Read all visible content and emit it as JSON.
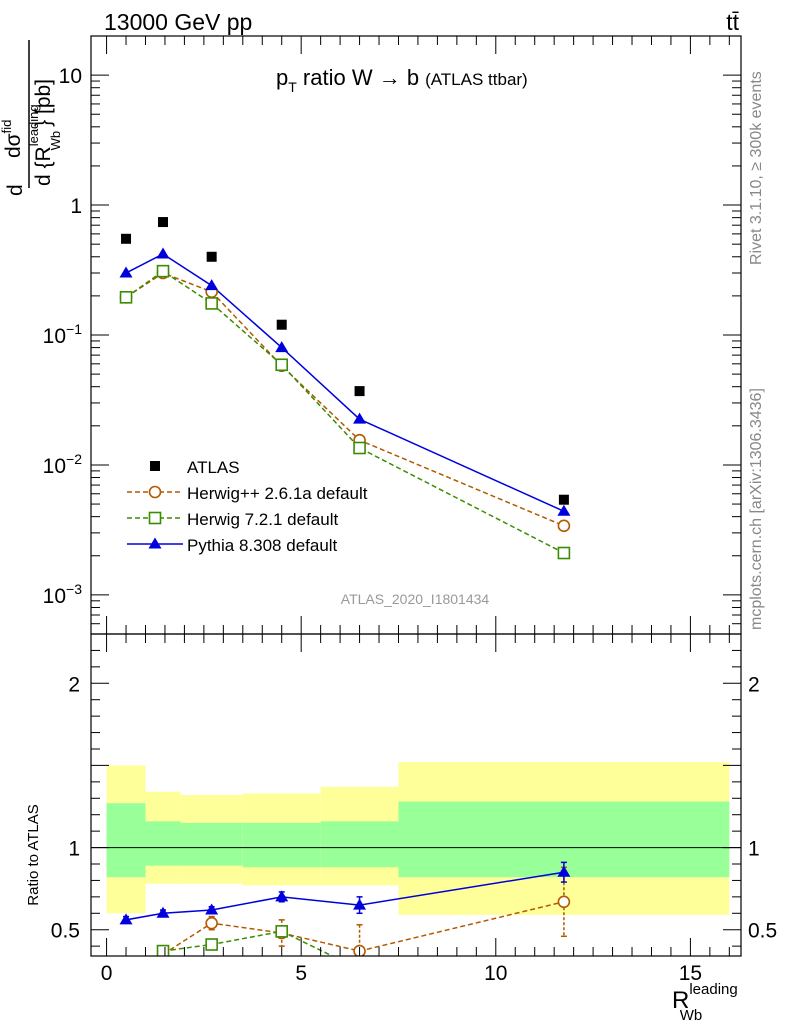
{
  "header": {
    "left": "13000 GeV pp",
    "right": "tt̄"
  },
  "side_labels": {
    "top": "Rivet 3.1.10, ≥ 300k events",
    "bottom": "mcplots.cern.ch [arXiv:1306.3436]"
  },
  "watermark": "ATLAS_2020_I1801434",
  "colors": {
    "atlas": "#000000",
    "herwigpp": "#b35900",
    "herwig7": "#3a8c00",
    "pythia": "#0000dd",
    "band_inner": "#99ff99",
    "band_outer": "#ffff99"
  },
  "chart_data": [
    {
      "type": "line",
      "panel": "main",
      "title_main": "p",
      "title_sub": "T",
      "title_rest": " ratio W → b",
      "title_small": "(ATLAS ttbar)",
      "ylabel": "d σ^fid / d {R_Wb^leading} [pb]",
      "ylabel_d": "d",
      "ylabel_num": "dσ",
      "ylabel_num_sup": "fid",
      "ylabel_den": "d {R",
      "ylabel_den_sup": "leading",
      "ylabel_den_sub": "Wb",
      "ylabel_den_end": "} [pb]",
      "yscale": "log",
      "ylim": [
        0.0005,
        20
      ],
      "xlim": [
        -0.4,
        16.3
      ],
      "yticks": [
        {
          "v": 10,
          "base": "10",
          "exp": ""
        },
        {
          "v": 1,
          "base": "1",
          "exp": ""
        },
        {
          "v": 0.1,
          "base": "10",
          "exp": "−1"
        },
        {
          "v": 0.01,
          "base": "10",
          "exp": "−2"
        },
        {
          "v": 0.001,
          "base": "10",
          "exp": "−3"
        }
      ],
      "legend_position": "bottom-left",
      "series": [
        {
          "key": "atlas",
          "name": "ATLAS",
          "marker": "square-filled",
          "x": [
            0.5,
            1.45,
            2.7,
            4.5,
            6.5,
            11.75
          ],
          "y": [
            0.55,
            0.74,
            0.4,
            0.12,
            0.037,
            0.0054
          ]
        },
        {
          "key": "herwigpp",
          "name": "Herwig++ 2.6.1a default",
          "marker": "circle-open",
          "dashed": true,
          "x": [
            0.5,
            1.45,
            2.7,
            4.5,
            6.5,
            11.75
          ],
          "y": [
            0.195,
            0.3,
            0.215,
            0.058,
            0.0155,
            0.0034
          ]
        },
        {
          "key": "herwig7",
          "name": "Herwig 7.2.1 default",
          "marker": "square-open",
          "dashed": true,
          "x": [
            0.5,
            1.45,
            2.7,
            4.5,
            6.5,
            11.75
          ],
          "y": [
            0.195,
            0.31,
            0.175,
            0.059,
            0.0135,
            0.0021
          ]
        },
        {
          "key": "pythia",
          "name": "Pythia 8.308 default",
          "marker": "triangle-filled",
          "dashed": false,
          "x": [
            0.5,
            1.45,
            2.7,
            4.5,
            6.5,
            11.75
          ],
          "y": [
            0.3,
            0.42,
            0.24,
            0.08,
            0.0225,
            0.0044
          ]
        }
      ]
    },
    {
      "type": "line",
      "panel": "ratio",
      "ylabel": "Ratio to ATLAS",
      "xlabel_main": "R",
      "xlabel_sup": "leading",
      "xlabel_sub": "Wb",
      "yscale": "linear",
      "ylim": [
        0.34,
        2.3
      ],
      "xlim": [
        -0.4,
        16.3
      ],
      "xticks": [
        0,
        5,
        10,
        15
      ],
      "yticks": [
        0.5,
        1,
        2
      ],
      "bands": [
        {
          "x0": 0,
          "x1": 1,
          "inner": [
            0.82,
            1.27
          ],
          "outer": [
            0.6,
            1.5
          ]
        },
        {
          "x0": 1,
          "x1": 1.9,
          "inner": [
            0.89,
            1.16
          ],
          "outer": [
            0.78,
            1.34
          ]
        },
        {
          "x0": 1.9,
          "x1": 3.5,
          "inner": [
            0.89,
            1.15
          ],
          "outer": [
            0.78,
            1.32
          ]
        },
        {
          "x0": 3.5,
          "x1": 5.5,
          "inner": [
            0.88,
            1.15
          ],
          "outer": [
            0.77,
            1.33
          ]
        },
        {
          "x0": 5.5,
          "x1": 7.5,
          "inner": [
            0.88,
            1.16
          ],
          "outer": [
            0.77,
            1.37
          ]
        },
        {
          "x0": 7.5,
          "x1": 16,
          "inner": [
            0.82,
            1.28
          ],
          "outer": [
            0.59,
            1.52
          ]
        }
      ],
      "series": [
        {
          "key": "herwigpp",
          "marker": "circle-open",
          "dashed": true,
          "x": [
            1.45,
            2.7,
            4.5,
            6.5,
            11.75
          ],
          "y": [
            0.35,
            0.54,
            0.48,
            0.37,
            0.67
          ],
          "err": [
            0.02,
            0.04,
            0.08,
            0.16,
            0.21
          ]
        },
        {
          "key": "herwig7",
          "marker": "square-open",
          "dashed": true,
          "x": [
            1.45,
            2.7,
            4.5,
            5.8
          ],
          "y": [
            0.37,
            0.41,
            0.49,
            0.34
          ],
          "err": [
            0.02,
            0.015,
            0.03,
            0.0
          ]
        },
        {
          "key": "pythia",
          "marker": "triangle-filled",
          "dashed": false,
          "x": [
            0.5,
            1.45,
            2.7,
            4.5,
            6.5,
            11.75
          ],
          "y": [
            0.56,
            0.6,
            0.62,
            0.7,
            0.65,
            0.85
          ],
          "err": [
            0.02,
            0.02,
            0.02,
            0.03,
            0.05,
            0.06
          ]
        }
      ]
    }
  ]
}
